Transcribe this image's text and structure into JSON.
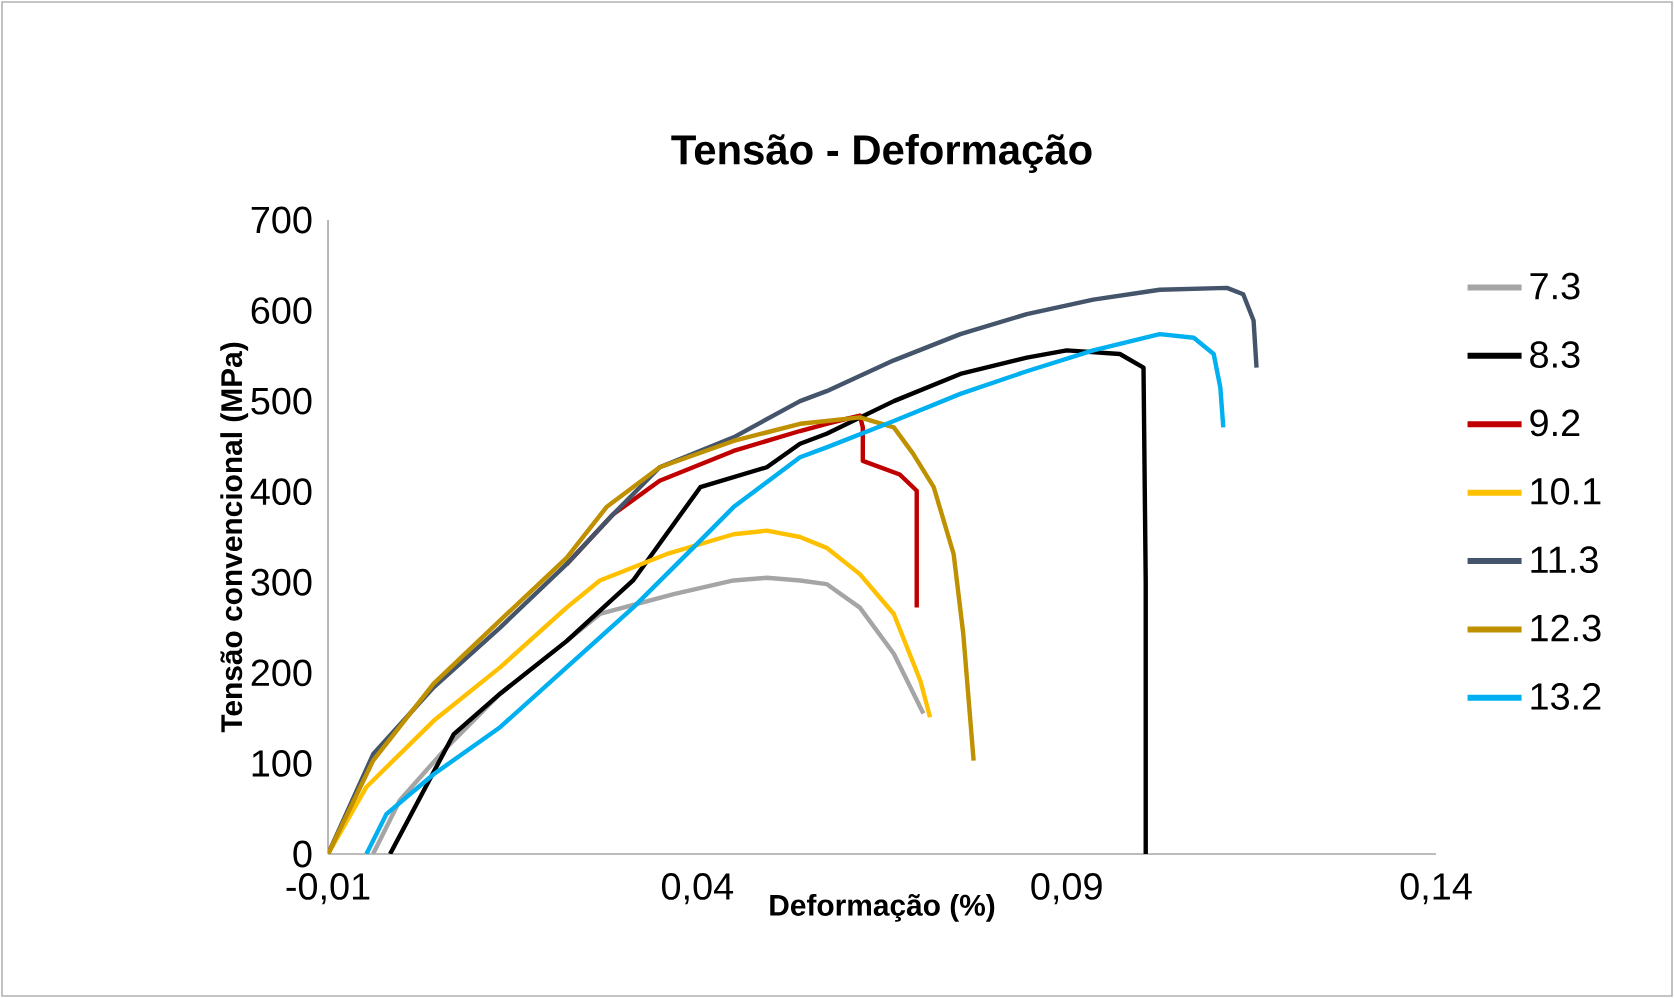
{
  "chart_data": {
    "type": "line",
    "title": "Tensão - Deformação",
    "xlabel": "Deformação (%)",
    "ylabel": "Tensão convencional (MPa)",
    "xlim": [
      -0.01,
      0.14
    ],
    "ylim": [
      0,
      700
    ],
    "xticks": [
      {
        "value": -0.01,
        "label": "-0,01"
      },
      {
        "value": 0.04,
        "label": "0,04"
      },
      {
        "value": 0.09,
        "label": "0,09"
      },
      {
        "value": 0.14,
        "label": "0,14"
      }
    ],
    "yticks": [
      0,
      100,
      200,
      300,
      400,
      500,
      600,
      700
    ],
    "legend": "right",
    "series": [
      {
        "name": "7.3",
        "color": "#a5a5a5",
        "x": [
          -0.0039,
          -0.0003,
          0.0061,
          0.0133,
          0.0223,
          0.0268,
          0.0368,
          0.0449,
          0.0494,
          0.0539,
          0.0575,
          0.062,
          0.0666,
          0.0706
        ],
        "values": [
          0,
          59,
          118,
          177,
          235,
          265,
          287,
          302,
          305,
          302,
          298,
          272,
          221,
          155
        ]
      },
      {
        "name": "8.3",
        "color": "#000000",
        "x": [
          -0.0016,
          0.007,
          0.0133,
          0.0223,
          0.0313,
          0.0404,
          0.0494,
          0.0539,
          0.0575,
          0.0666,
          0.0756,
          0.0846,
          0.09,
          0.0972,
          0.1004,
          0.1007,
          0.1007
        ],
        "values": [
          0,
          132,
          177,
          235,
          302,
          405,
          427,
          453,
          464,
          500,
          530,
          548,
          556,
          552,
          537,
          300,
          0
        ]
      },
      {
        "name": "9.2",
        "color": "#c00000",
        "x": [
          0.0223,
          0.0286,
          0.0349,
          0.0449,
          0.0539,
          0.0575,
          0.062,
          0.0624,
          0.0624,
          0.0674,
          0.0697,
          0.0697
        ],
        "values": [
          320,
          375,
          412,
          445,
          467,
          475,
          484,
          471,
          434,
          419,
          401,
          272
        ]
      },
      {
        "name": "10.1",
        "color": "#ffc000",
        "x": [
          -0.01,
          -0.0048,
          0.0043,
          0.0133,
          0.0223,
          0.0268,
          0.0358,
          0.0449,
          0.0494,
          0.0539,
          0.0575,
          0.062,
          0.0666,
          0.0702,
          0.0715
        ],
        "values": [
          0,
          74,
          147,
          206,
          272,
          302,
          331,
          353,
          357,
          350,
          338,
          309,
          265,
          191,
          151
        ]
      },
      {
        "name": "11.3",
        "color": "#44546a",
        "x": [
          -0.01,
          -0.0039,
          0.0043,
          0.0133,
          0.0223,
          0.0286,
          0.0349,
          0.0449,
          0.0539,
          0.0575,
          0.0666,
          0.0756,
          0.0846,
          0.0936,
          0.1026,
          0.1117,
          0.1139,
          0.1153,
          0.1157
        ],
        "values": [
          0,
          110,
          184,
          250,
          320,
          375,
          427,
          460,
          500,
          511,
          545,
          574,
          596,
          612,
          623,
          625,
          618,
          589,
          537
        ]
      },
      {
        "name": "12.3",
        "color": "#bf9000",
        "x": [
          -0.01,
          -0.0039,
          0.0043,
          0.0133,
          0.0223,
          0.0277,
          0.0349,
          0.0449,
          0.0539,
          0.0575,
          0.062,
          0.0666,
          0.0692,
          0.072,
          0.0747,
          0.076,
          0.0774
        ],
        "values": [
          0,
          103,
          188,
          258,
          327,
          383,
          427,
          456,
          475,
          478,
          482,
          471,
          442,
          405,
          331,
          243,
          103
        ]
      },
      {
        "name": "13.2",
        "color": "#00b0f0",
        "x": [
          -0.0048,
          -0.0021,
          0.0043,
          0.0133,
          0.0223,
          0.0313,
          0.0404,
          0.0449,
          0.0539,
          0.0575,
          0.0666,
          0.0756,
          0.0846,
          0.0936,
          0.1026,
          0.1072,
          0.1099,
          0.1108,
          0.1112
        ],
        "values": [
          0,
          44,
          88,
          140,
          206,
          272,
          346,
          383,
          438,
          449,
          478,
          508,
          533,
          556,
          574,
          570,
          552,
          515,
          471
        ]
      }
    ]
  }
}
